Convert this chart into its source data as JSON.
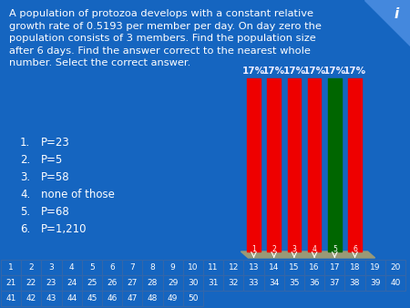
{
  "background_color": "#1565C0",
  "question_text": "A population of protozoa develops with a constant relative\ngrowth rate of 0.5193 per member per day. On day zero the\npopulation consists of 3 members. Find the population size\nafter 6 days. Find the answer correct to the nearest whole\nnumber. Select the correct answer.",
  "choices": [
    [
      "1.",
      "P=23"
    ],
    [
      "2.",
      "P=5"
    ],
    [
      "3.",
      "P=58"
    ],
    [
      "4.",
      "none of those"
    ],
    [
      "5.",
      "P=68"
    ],
    [
      "6.",
      "P=1,210"
    ]
  ],
  "bar_labels": [
    "17%",
    "17%",
    "17%",
    "17%",
    "17%",
    "17%"
  ],
  "bar_colors": [
    "#EE0000",
    "#EE0000",
    "#EE0000",
    "#EE0000",
    "#006600",
    "#EE0000"
  ],
  "bar_base_color": "#999977",
  "text_color": "#FFFFFF",
  "label_color": "#EEEEFF",
  "grid_numbers_row1": [
    1,
    2,
    3,
    4,
    5,
    6,
    7,
    8,
    9,
    10,
    11,
    12,
    13,
    14,
    15,
    16,
    17,
    18,
    19,
    20
  ],
  "grid_numbers_row2": [
    21,
    22,
    23,
    24,
    25,
    26,
    27,
    28,
    29,
    30,
    31,
    32,
    33,
    34,
    35,
    36,
    37,
    38,
    39,
    40
  ],
  "grid_numbers_row3": [
    41,
    42,
    43,
    44,
    45,
    46,
    47,
    48,
    49,
    50
  ],
  "grid_border_color": "#3366AA",
  "grid_bg_color": "#1565C0",
  "arrow_numbers": [
    1,
    2,
    3,
    4,
    5,
    6
  ],
  "arrow_above_cols": [
    12,
    13,
    14,
    15,
    16,
    17
  ],
  "info_triangle_color": "#4488DD"
}
